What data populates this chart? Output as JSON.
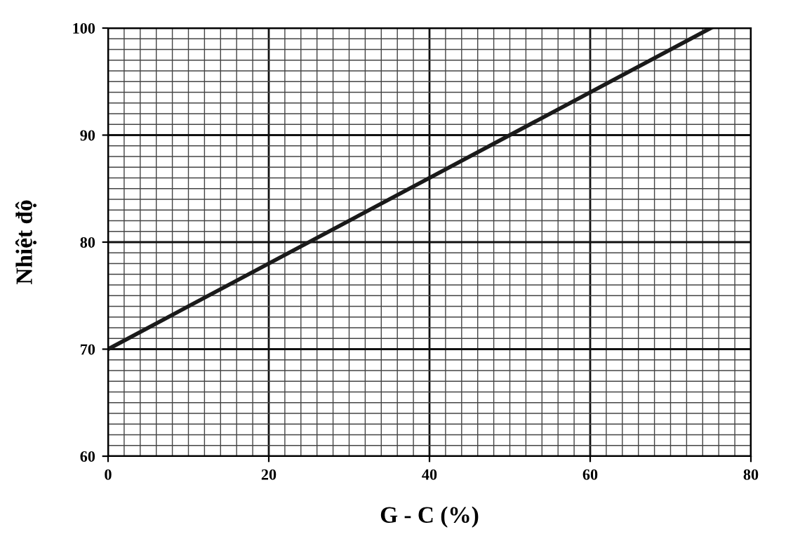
{
  "chart_data": {
    "type": "line",
    "xlabel": "G - C (%)",
    "ylabel": "Nhiệt độ",
    "x": [
      0,
      75
    ],
    "series": [
      {
        "color": "#1a1a1a",
        "values": [
          70,
          100
        ]
      }
    ],
    "xlim": [
      0,
      80
    ],
    "ylim": [
      60,
      100
    ],
    "xticks": [
      0,
      20,
      40,
      60,
      80
    ],
    "yticks": [
      60,
      70,
      80,
      90,
      100
    ],
    "grid": true,
    "marker": "none",
    "line_style": "solid"
  }
}
